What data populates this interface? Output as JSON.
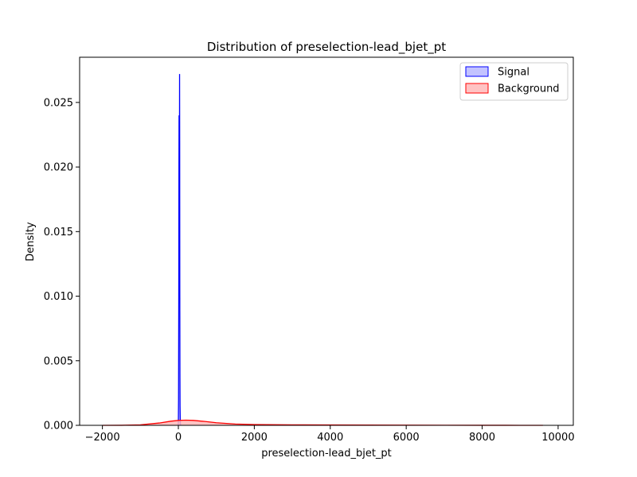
{
  "chart_data": {
    "type": "area",
    "title": "Distribution of preselection-lead_bjet_pt",
    "xlabel": "preselection-lead_bjet_pt",
    "ylabel": "Density",
    "xlim": [
      -2600,
      10400
    ],
    "ylim": [
      0,
      0.0285
    ],
    "x_ticks": [
      -2000,
      0,
      2000,
      4000,
      6000,
      8000,
      10000
    ],
    "x_tick_labels": [
      "−2000",
      "0",
      "2000",
      "4000",
      "6000",
      "8000",
      "10000"
    ],
    "y_ticks": [
      0,
      0.005,
      0.01,
      0.015,
      0.02,
      0.025
    ],
    "y_tick_labels": [
      "0.000",
      "0.005",
      "0.010",
      "0.015",
      "0.020",
      "0.025"
    ],
    "grid": false,
    "legend_position": "top-right",
    "series": [
      {
        "name": "Signal",
        "color": "#0000ff",
        "fill": "#b8b8ff",
        "x": [
          -5,
          0,
          5,
          10,
          15,
          18,
          22,
          25,
          28,
          32,
          35,
          38,
          42,
          45,
          50,
          55,
          60
        ],
        "y": [
          0,
          0.0003,
          0.002,
          0.009,
          0.02,
          0.024,
          0.019,
          0.012,
          0.018,
          0.0272,
          0.022,
          0.011,
          0.004,
          0.0015,
          0.0005,
          0.0001,
          0
        ]
      },
      {
        "name": "Background",
        "color": "#ff0000",
        "fill": "#ffb8b8",
        "x": [
          -2000,
          -1500,
          -1000,
          -500,
          -200,
          0,
          200,
          400,
          700,
          1000,
          1500,
          2000,
          3000,
          4000,
          5000,
          6000,
          7000,
          8000,
          9000,
          9600
        ],
        "y": [
          0.0,
          5e-06,
          4e-05,
          0.00018,
          0.00032,
          0.00038,
          0.0004,
          0.00038,
          0.0003,
          0.0002,
          0.0001,
          6e-05,
          4e-05,
          3e-05,
          2e-05,
          1.2e-05,
          8e-06,
          5e-06,
          2e-06,
          0.0
        ]
      }
    ]
  }
}
